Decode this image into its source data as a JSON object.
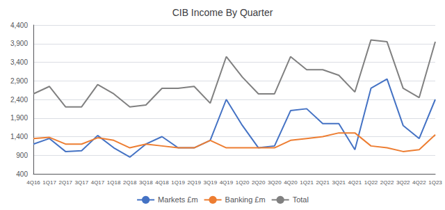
{
  "chart_data": {
    "type": "line",
    "title": "CIB Income By Quarter",
    "categories": [
      "4Q16",
      "1Q17",
      "2Q17",
      "3Q17",
      "4Q17",
      "1Q18",
      "2Q18",
      "3Q18",
      "4Q18",
      "1Q19",
      "2Q19",
      "3Q19",
      "4Q19",
      "1Q20",
      "2Q20",
      "3Q20",
      "4Q20",
      "1Q21",
      "2Q21",
      "3Q21",
      "4Q21",
      "1Q22",
      "2Q22",
      "3Q22",
      "4Q22",
      "1Q23"
    ],
    "series": [
      {
        "name": "Markets £m",
        "color": "#4472C4",
        "values": [
          1200,
          1350,
          1000,
          1020,
          1430,
          1100,
          850,
          1200,
          1400,
          1100,
          1100,
          1300,
          2400,
          1700,
          1100,
          1150,
          2100,
          2150,
          1750,
          1750,
          1050,
          2700,
          2950,
          1700,
          1350,
          2400
        ]
      },
      {
        "name": "Banking £m",
        "color": "#ED7D31",
        "values": [
          1350,
          1380,
          1200,
          1200,
          1370,
          1300,
          1100,
          1200,
          1150,
          1100,
          1100,
          1300,
          1100,
          1100,
          1100,
          1100,
          1300,
          1350,
          1400,
          1500,
          1500,
          1150,
          1100,
          1000,
          1050,
          1450
        ]
      },
      {
        "name": "Total",
        "color": "#808080",
        "values": [
          2550,
          2750,
          2200,
          2200,
          2800,
          2550,
          2200,
          2250,
          2700,
          2700,
          2750,
          2300,
          3550,
          3000,
          2550,
          2550,
          3550,
          3200,
          3200,
          3050,
          2600,
          4000,
          3950,
          2700,
          2450,
          3950
        ]
      }
    ],
    "ylim": [
      400,
      4400
    ],
    "yticks": [
      400,
      900,
      {
        "value": 1400,
        "label": "1,400"
      },
      {
        "value": 1900,
        "label": "1,900"
      },
      {
        "value": 2400,
        "label": "2,400"
      },
      {
        "value": 2900,
        "label": "2,900"
      },
      {
        "value": 3400,
        "label": "3,400"
      },
      {
        "value": 3900,
        "label": "3,900"
      },
      {
        "value": 4400,
        "label": "4,400"
      }
    ],
    "grid": true,
    "legend": "bottom"
  }
}
